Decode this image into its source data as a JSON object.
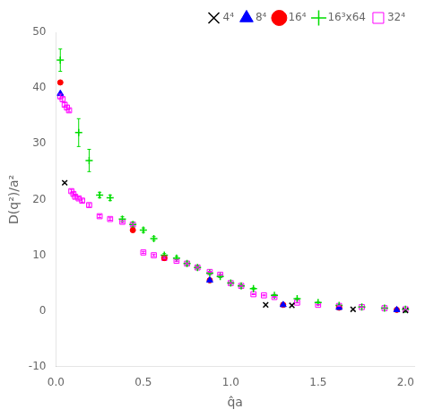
{
  "chart_data": {
    "type": "scatter",
    "xlabel": "q̂a",
    "ylabel": "D(q²)/a²",
    "xlim": [
      0,
      2.05
    ],
    "ylim": [
      -10,
      50
    ],
    "xticks": [
      {
        "value": 0,
        "label": "0.0"
      },
      0.5,
      {
        "value": 1,
        "label": "1.0"
      },
      1.5,
      {
        "value": 2,
        "label": "2.0"
      }
    ],
    "yticks": [
      -10,
      0,
      10,
      20,
      30,
      40,
      50
    ],
    "grid": false,
    "legend": "upper right",
    "series": [
      {
        "name": "4⁴",
        "color": "black",
        "marker": "x",
        "x": [
          0.05,
          1.2,
          1.35,
          1.7,
          2.0
        ],
        "values": [
          23.0,
          1.1,
          1.0,
          0.3,
          0.1
        ]
      },
      {
        "name": "8⁴",
        "color": "blue",
        "marker": "triangle",
        "x": [
          0.025,
          0.88,
          1.3,
          1.62,
          1.95
        ],
        "values": [
          39.0,
          5.5,
          1.1,
          0.6,
          0.2
        ]
      },
      {
        "name": "16⁴",
        "color": "red",
        "marker": "dot",
        "x": [
          0.025,
          0.44,
          0.62,
          0.88,
          1.3,
          1.62,
          1.95
        ],
        "values": [
          41.0,
          14.5,
          9.5,
          5.5,
          1.1,
          0.6,
          0.2
        ]
      },
      {
        "name": "16³x64",
        "color": "#00dd00",
        "marker": "plus",
        "x": [
          0.025,
          0.13,
          0.19,
          0.25,
          0.31,
          0.38,
          0.44,
          0.5,
          0.56,
          0.62,
          0.69,
          0.75,
          0.81,
          0.88,
          0.94,
          1.0,
          1.06,
          1.13,
          1.25,
          1.38,
          1.5,
          1.62,
          1.75,
          1.88,
          2.0
        ],
        "values": [
          45.0,
          32.0,
          27.0,
          20.8,
          20.3,
          16.5,
          15.5,
          14.5,
          13.0,
          10.0,
          9.5,
          8.5,
          7.8,
          6.8,
          6.2,
          5.0,
          4.5,
          4.0,
          2.8,
          2.2,
          1.5,
          1.0,
          0.7,
          0.5,
          0.3
        ],
        "yerr": [
          2.0,
          2.5,
          2.0,
          0.5,
          0.5,
          0.4,
          0.4,
          0.4,
          0.35,
          0.3,
          0.3,
          0.3,
          0.25,
          0.2,
          0.2,
          0.2,
          0.18,
          0.15,
          0.12,
          0.1,
          0.08,
          0.08,
          0.06,
          0.05,
          0.04
        ]
      },
      {
        "name": "32⁴",
        "color": "magenta",
        "marker": "open_square",
        "x": [
          0.025,
          0.038,
          0.05,
          0.063,
          0.075,
          0.088,
          0.1,
          0.11,
          0.13,
          0.15,
          0.19,
          0.25,
          0.31,
          0.38,
          0.44,
          0.5,
          0.56,
          0.62,
          0.69,
          0.75,
          0.81,
          0.88,
          0.94,
          1.0,
          1.06,
          1.13,
          1.19,
          1.25,
          1.38,
          1.5,
          1.62,
          1.75,
          1.88,
          2.0
        ],
        "values": [
          38.5,
          38.0,
          37.0,
          36.5,
          36.0,
          21.5,
          21.0,
          20.5,
          20.2,
          19.8,
          19.0,
          17.0,
          16.5,
          16.0,
          15.5,
          10.5,
          10.0,
          9.5,
          9.0,
          8.5,
          7.8,
          7.0,
          6.5,
          5.0,
          4.5,
          3.0,
          2.8,
          2.5,
          1.5,
          1.1,
          0.9,
          0.7,
          0.5,
          0.3
        ],
        "yerr": [
          0.4,
          0.4,
          0.35,
          0.35,
          0.3,
          0.3,
          0.3,
          0.3,
          0.28,
          0.28,
          0.25,
          0.25,
          0.22,
          0.2,
          0.2,
          0.18,
          0.18,
          0.15,
          0.15,
          0.12,
          0.12,
          0.1,
          0.1,
          0.1,
          0.08,
          0.08,
          0.08,
          0.06,
          0.06,
          0.05,
          0.05,
          0.04,
          0.04,
          0.03
        ]
      }
    ]
  }
}
